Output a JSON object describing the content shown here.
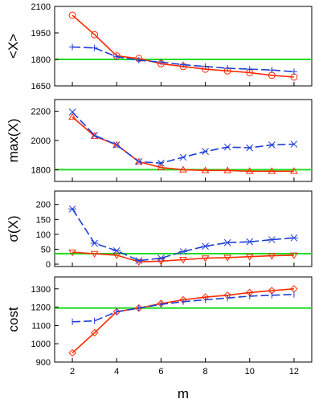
{
  "chart_data": [
    {
      "type": "line",
      "ylabel": "<X>",
      "xlabel": "",
      "xlim": [
        1.2,
        12.8
      ],
      "ylim": [
        1650,
        2100
      ],
      "yticks": [
        1650,
        1800,
        1950,
        2100
      ],
      "reference_line": {
        "value": 1800,
        "color": "#22dd22"
      },
      "series": [
        {
          "color": "#ff2a00",
          "marker": "circle",
          "x": [
            2,
            3,
            4,
            5,
            6,
            7,
            8,
            9,
            10,
            11,
            12
          ],
          "y": [
            2050,
            1940,
            1820,
            1805,
            1776,
            1760,
            1745,
            1735,
            1725,
            1710,
            1700
          ]
        },
        {
          "color": "#1f3fd6",
          "marker": "plus",
          "x": [
            2,
            3,
            4,
            5,
            6,
            7,
            8,
            9,
            10,
            11,
            12
          ],
          "y": [
            1870,
            1865,
            1815,
            1795,
            1785,
            1770,
            1760,
            1750,
            1745,
            1740,
            1730
          ]
        }
      ]
    },
    {
      "type": "line",
      "ylabel": "max(X)",
      "xlabel": "",
      "xlim": [
        1.2,
        12.8
      ],
      "ylim": [
        1720,
        2280
      ],
      "yticks": [
        1800,
        2000,
        2200
      ],
      "reference_line": {
        "value": 1800,
        "color": "#22dd22"
      },
      "series": [
        {
          "color": "#ff2a00",
          "marker": "triangle-up",
          "x": [
            2,
            3,
            4,
            5,
            6,
            7,
            8,
            9,
            10,
            11,
            12
          ],
          "y": [
            2160,
            2030,
            1970,
            1855,
            1815,
            1800,
            1795,
            1795,
            1790,
            1790,
            1790
          ]
        },
        {
          "color": "#1f3fd6",
          "marker": "x",
          "x": [
            2,
            3,
            4,
            5,
            6,
            7,
            8,
            9,
            10,
            11,
            12
          ],
          "y": [
            2195,
            2035,
            1970,
            1855,
            1845,
            1885,
            1925,
            1955,
            1950,
            1970,
            1975
          ]
        }
      ]
    },
    {
      "type": "line",
      "ylabel": "σ(X)",
      "xlabel": "",
      "xlim": [
        1.2,
        12.8
      ],
      "ylim": [
        -8,
        245
      ],
      "yticks": [
        0,
        50,
        100,
        150,
        200
      ],
      "reference_line": {
        "value": 35,
        "color": "#22dd22"
      },
      "series": [
        {
          "color": "#ff2a00",
          "marker": "triangle-down",
          "x": [
            2,
            3,
            4,
            5,
            6,
            7,
            8,
            9,
            10,
            11,
            12
          ],
          "y": [
            40,
            35,
            30,
            8,
            10,
            15,
            20,
            22,
            25,
            28,
            30
          ]
        },
        {
          "color": "#1f3fd6",
          "marker": "asterisk",
          "x": [
            2,
            3,
            4,
            5,
            6,
            7,
            8,
            9,
            10,
            11,
            12
          ],
          "y": [
            185,
            70,
            45,
            12,
            20,
            42,
            60,
            72,
            75,
            82,
            88
          ]
        }
      ]
    },
    {
      "type": "line",
      "ylabel": "cost",
      "xlabel": "m",
      "xlim": [
        1.2,
        12.8
      ],
      "ylim": [
        900,
        1365
      ],
      "yticks": [
        900,
        1000,
        1100,
        1200,
        1300
      ],
      "xticks": [
        2,
        4,
        6,
        8,
        10,
        12
      ],
      "reference_line": {
        "value": 1195,
        "color": "#22dd22"
      },
      "series": [
        {
          "color": "#ff2a00",
          "marker": "diamond",
          "x": [
            2,
            3,
            4,
            5,
            6,
            7,
            8,
            9,
            10,
            11,
            12
          ],
          "y": [
            950,
            1060,
            1175,
            1195,
            1220,
            1240,
            1255,
            1265,
            1280,
            1290,
            1300
          ]
        },
        {
          "color": "#1f3fd6",
          "marker": "vbar",
          "x": [
            2,
            3,
            4,
            5,
            6,
            7,
            8,
            9,
            10,
            11,
            12
          ],
          "y": [
            1120,
            1125,
            1175,
            1195,
            1215,
            1230,
            1240,
            1250,
            1260,
            1265,
            1270
          ]
        }
      ]
    }
  ]
}
